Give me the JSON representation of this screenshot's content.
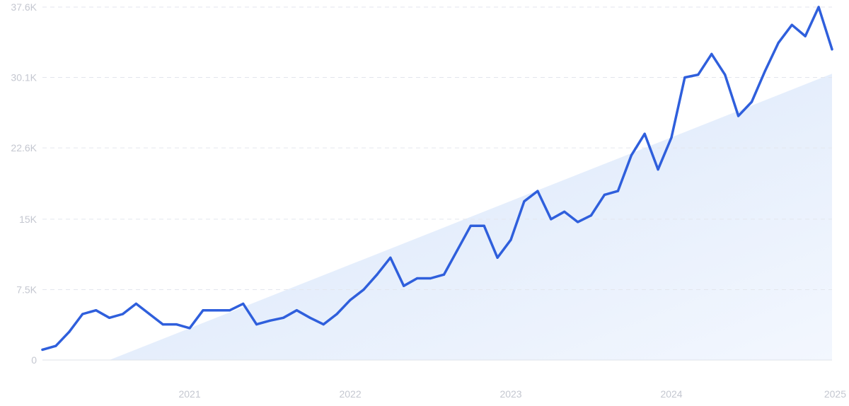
{
  "chart_data": {
    "type": "line",
    "title": "",
    "xlabel": "",
    "ylabel": "",
    "ylim": [
      0,
      37600
    ],
    "xlim": [
      "2020-02",
      "2025-01"
    ],
    "grid": true,
    "y_ticks": [
      {
        "value": 0,
        "label": "0"
      },
      {
        "value": 7500,
        "label": "7.5K"
      },
      {
        "value": 15000,
        "label": "15K"
      },
      {
        "value": 22600,
        "label": "22.6K"
      },
      {
        "value": 30100,
        "label": "30.1K"
      },
      {
        "value": 37600,
        "label": "37.6K"
      }
    ],
    "x_ticks": [
      {
        "value": "2021-01",
        "label": "2021"
      },
      {
        "value": "2022-01",
        "label": "2022"
      },
      {
        "value": "2023-01",
        "label": "2023"
      },
      {
        "value": "2024-01",
        "label": "2024"
      },
      {
        "value": "2025-01",
        "label": "2025"
      }
    ],
    "colors": {
      "line": "#2f5fdc",
      "trend_fill": "#dce9fb",
      "grid": "#e3e6ed",
      "tick_text": "#c4c7d0"
    },
    "trend_area": {
      "points": [
        [
          "2020-07",
          0
        ],
        [
          "2025-01",
          30500
        ]
      ]
    },
    "series": [
      {
        "x": [
          "2020-02",
          "2020-03",
          "2020-04",
          "2020-05",
          "2020-06",
          "2020-07",
          "2020-08",
          "2020-09",
          "2020-10",
          "2020-11",
          "2020-12",
          "2021-01",
          "2021-02",
          "2021-03",
          "2021-04",
          "2021-05",
          "2021-06",
          "2021-07",
          "2021-08",
          "2021-09",
          "2021-10",
          "2021-11",
          "2021-12",
          "2022-01",
          "2022-02",
          "2022-03",
          "2022-04",
          "2022-05",
          "2022-06",
          "2022-07",
          "2022-08",
          "2022-09",
          "2022-10",
          "2022-11",
          "2022-12",
          "2023-01",
          "2023-02",
          "2023-03",
          "2023-04",
          "2023-05",
          "2023-06",
          "2023-07",
          "2023-08",
          "2023-09",
          "2023-10",
          "2023-11",
          "2023-12",
          "2024-01",
          "2024-02",
          "2024-03",
          "2024-04",
          "2024-05",
          "2024-06",
          "2024-07",
          "2024-08",
          "2024-09",
          "2024-10",
          "2024-11",
          "2024-12",
          "2025-01"
        ],
        "values": [
          1100,
          1500,
          3000,
          4900,
          5300,
          4500,
          4900,
          6000,
          4900,
          3800,
          3800,
          3400,
          5300,
          5300,
          5300,
          6000,
          3800,
          4200,
          4500,
          5300,
          4500,
          3800,
          4900,
          6400,
          7500,
          9100,
          10900,
          7900,
          8700,
          8700,
          9100,
          11700,
          14300,
          14300,
          10900,
          12800,
          16900,
          18000,
          15000,
          15800,
          14700,
          15400,
          17600,
          18000,
          21800,
          24100,
          20300,
          23700,
          30100,
          30400,
          32600,
          30400,
          26000,
          27500,
          30800,
          33800,
          35700,
          34500,
          37600,
          33100
        ]
      }
    ]
  }
}
